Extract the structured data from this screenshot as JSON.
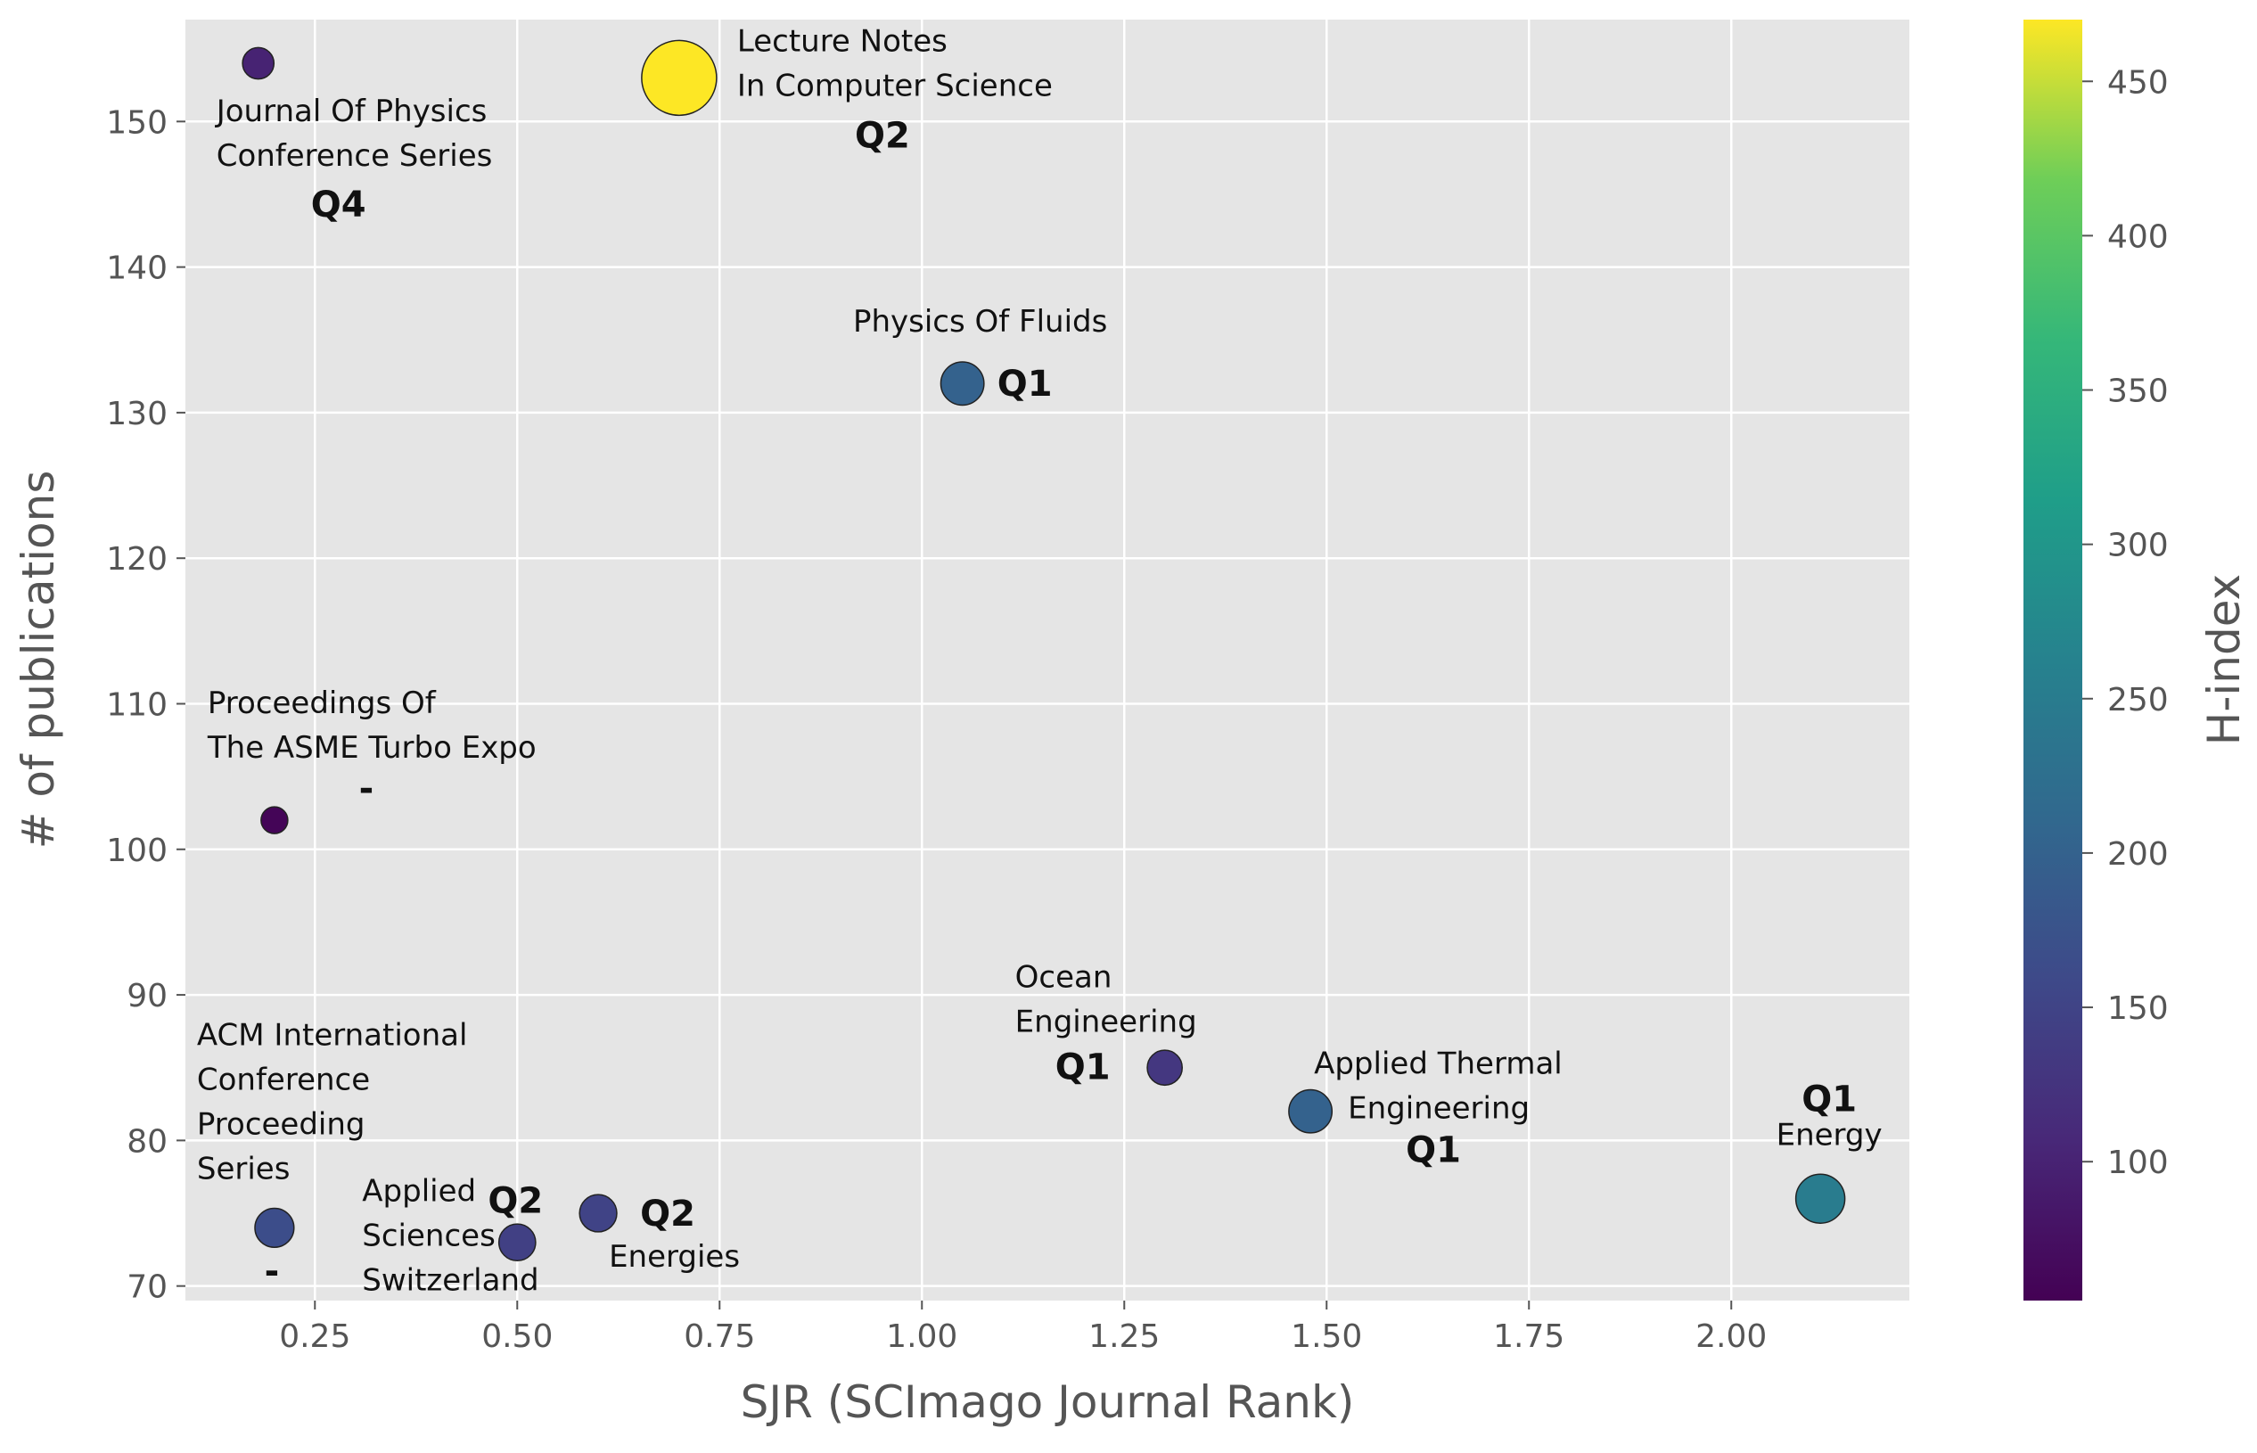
{
  "chart_data": {
    "type": "scatter",
    "title": "",
    "xlabel": "SJR (SCImago Journal Rank)",
    "ylabel": "# of publications",
    "xlim": [
      0.09,
      2.22
    ],
    "ylim": [
      69,
      157
    ],
    "grid": true,
    "x_ticks": [
      "0.25",
      "0.50",
      "0.75",
      "1.00",
      "1.25",
      "1.50",
      "1.75",
      "2.00"
    ],
    "y_ticks": [
      "70",
      "80",
      "90",
      "100",
      "110",
      "120",
      "130",
      "140",
      "150"
    ],
    "colorbar": {
      "label": "H-index",
      "colormap": "viridis",
      "range": [
        55,
        470
      ],
      "ticks": [
        "100",
        "150",
        "200",
        "250",
        "300",
        "350",
        "400",
        "450"
      ]
    },
    "size_encoding": "H-index",
    "points": [
      {
        "journal": "Journal Of Physics Conference Series",
        "label_lines": [
          "Journal Of Physics",
          "Conference Series"
        ],
        "quartile": "Q4",
        "sjr": 0.18,
        "publications": 154,
        "h_index": 100
      },
      {
        "journal": "Lecture Notes In Computer Science",
        "label_lines": [
          "Lecture Notes",
          "In Computer Science"
        ],
        "quartile": "Q2",
        "sjr": 0.7,
        "publications": 153,
        "h_index": 470
      },
      {
        "journal": "Physics Of Fluids",
        "label_lines": [
          "Physics Of Fluids"
        ],
        "quartile": "Q1",
        "sjr": 1.05,
        "publications": 132,
        "h_index": 200
      },
      {
        "journal": "Proceedings Of The ASME Turbo Expo",
        "label_lines": [
          "Proceedings Of",
          "The ASME Turbo Expo"
        ],
        "quartile": "-",
        "sjr": 0.2,
        "publications": 102,
        "h_index": 60
      },
      {
        "journal": "Ocean Engineering",
        "label_lines": [
          "Ocean",
          "Engineering"
        ],
        "quartile": "Q1",
        "sjr": 1.3,
        "publications": 85,
        "h_index": 130
      },
      {
        "journal": "Applied Thermal Engineering",
        "label_lines": [
          "Applied Thermal",
          "Engineering"
        ],
        "quartile": "Q1",
        "sjr": 1.48,
        "publications": 82,
        "h_index": 200
      },
      {
        "journal": "Energy",
        "label_lines": [
          "Energy"
        ],
        "quartile": "Q1",
        "sjr": 2.11,
        "publications": 76,
        "h_index": 250
      },
      {
        "journal": "ACM International Conference Proceeding Series",
        "label_lines": [
          "ACM International",
          "Conference",
          "Proceeding",
          "Series"
        ],
        "quartile": "-",
        "sjr": 0.2,
        "publications": 74,
        "h_index": 165
      },
      {
        "journal": "Applied Sciences Switzerland",
        "label_lines": [
          "Applied",
          "Sciences",
          "Switzerland"
        ],
        "quartile": "Q2",
        "sjr": 0.5,
        "publications": 73,
        "h_index": 145
      },
      {
        "journal": "Energies",
        "label_lines": [
          "Energies"
        ],
        "quartile": "Q2",
        "sjr": 0.6,
        "publications": 75,
        "h_index": 150
      }
    ]
  }
}
